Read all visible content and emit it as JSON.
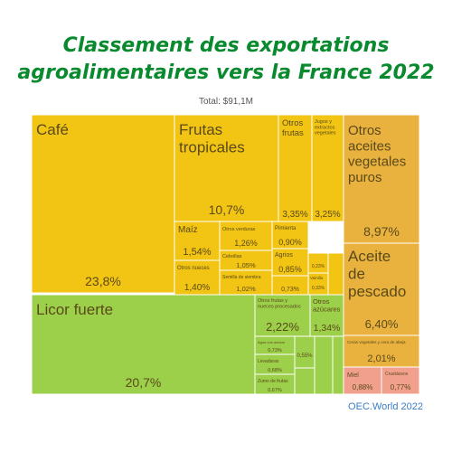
{
  "title_line1": "Classement des exportations",
  "title_line2": "agroalimentaires vers la France 2022",
  "total": "Total: $91,1M",
  "source": "OEC.World 2022",
  "colors": {
    "title": "#0a8a2e",
    "yellow": "#f2c413",
    "green": "#9ccf4a",
    "orange": "#e9b23f",
    "salmon": "#f2a08e",
    "source": "#3a7ec6"
  },
  "chart_data": {
    "type": "treemap",
    "items": [
      {
        "name": "Café",
        "value_label": "23,8%",
        "value": 23.8,
        "group": "yellow"
      },
      {
        "name": "Frutas tropicales",
        "value_label": "10,7%",
        "value": 10.7,
        "group": "yellow"
      },
      {
        "name": "Otros frutas",
        "value_label": "3,35%",
        "value": 3.35,
        "group": "yellow"
      },
      {
        "name": "Jugos y extractos vegetales",
        "value_label": "3,25%",
        "value": 3.25,
        "group": "yellow"
      },
      {
        "name": "Maíz",
        "value_label": "1,54%",
        "value": 1.54,
        "group": "yellow"
      },
      {
        "name": "Otros nueces",
        "value_label": "1,40%",
        "value": 1.4,
        "group": "yellow"
      },
      {
        "name": "Otros verduras",
        "value_label": "1,26%",
        "value": 1.26,
        "group": "yellow"
      },
      {
        "name": "Cebollas",
        "value_label": "1,05%",
        "value": 1.05,
        "group": "yellow"
      },
      {
        "name": "Semilla de siembra",
        "value_label": "1,02%",
        "value": 1.02,
        "group": "yellow"
      },
      {
        "name": "Pimienta",
        "value_label": "0,90%",
        "value": 0.9,
        "group": "yellow"
      },
      {
        "name": "Agrios",
        "value_label": "0,85%",
        "value": 0.85,
        "group": "yellow"
      },
      {
        "name": "",
        "value_label": "0,73%",
        "value": 0.73,
        "group": "yellow"
      },
      {
        "name": "",
        "value_label": "0,23%",
        "value": 0.23,
        "group": "yellow"
      },
      {
        "name": "Vainilla",
        "value_label": "0,33%",
        "value": 0.33,
        "group": "yellow"
      },
      {
        "name": "Licor fuerte",
        "value_label": "20,7%",
        "value": 20.7,
        "group": "green"
      },
      {
        "name": "Otros frutas y nueces procesados",
        "value_label": "2,22%",
        "value": 2.22,
        "group": "green"
      },
      {
        "name": "Otros azúcares",
        "value_label": "1,34%",
        "value": 1.34,
        "group": "green"
      },
      {
        "name": "Agua con azúcar",
        "value_label": "0,73%",
        "value": 0.73,
        "group": "green"
      },
      {
        "name": "Levaduras",
        "value_label": "0,68%",
        "value": 0.68,
        "group": "green"
      },
      {
        "name": "Zumo de frutas",
        "value_label": "0,67%",
        "value": 0.67,
        "group": "green"
      },
      {
        "name": "",
        "value_label": "0,55%",
        "value": 0.55,
        "group": "green"
      },
      {
        "name": "Otros aceites vegetales puros",
        "value_label": "8,97%",
        "value": 8.97,
        "group": "orange"
      },
      {
        "name": "Aceite de pescado",
        "value_label": "6,40%",
        "value": 6.4,
        "group": "orange"
      },
      {
        "name": "Ceras vegetales y cera de abeja",
        "value_label": "2,01%",
        "value": 2.01,
        "group": "orange"
      },
      {
        "name": "Miel",
        "value_label": "0,88%",
        "value": 0.88,
        "group": "salmon"
      },
      {
        "name": "Crustáceos",
        "value_label": "0,77%",
        "value": 0.77,
        "group": "salmon"
      }
    ]
  }
}
